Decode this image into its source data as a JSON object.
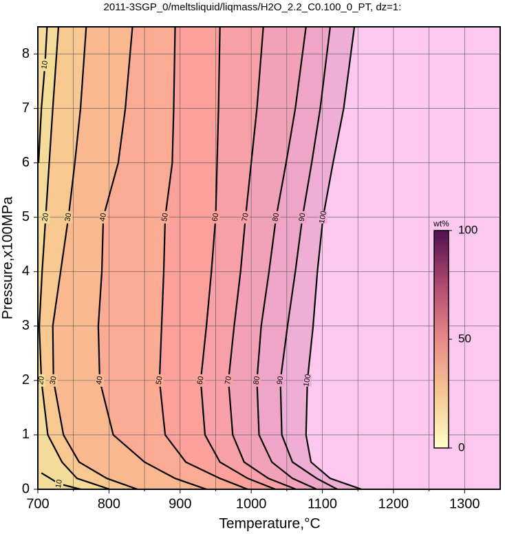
{
  "chart_data": {
    "type": "contour",
    "title": "2011-3SGP_0/meltsliquid/liqmass/H2O_2.2_C0.100_0_PT, dz=1:",
    "x_label": "Temperature,°C",
    "y_label": "Pressure,x100MPa",
    "xlim": [
      700,
      1350
    ],
    "ylim": [
      0,
      8.5
    ],
    "xticks": [
      700,
      800,
      900,
      1000,
      1100,
      1200,
      1300
    ],
    "minor_xticks": [
      750,
      850,
      950,
      1050,
      1150,
      1250
    ],
    "yticks": [
      0,
      1,
      2,
      3,
      4,
      5,
      6,
      7,
      8
    ],
    "grid": true,
    "low_color": "#f3dc98",
    "high_color": "#fcc8f0",
    "contours": [
      {
        "level": 10,
        "x": [
          760,
          730,
          705,
          null,
          701,
          705,
          710,
          713
        ],
        "y": [
          0,
          0.1,
          0.3,
          null,
          6.0,
          7.0,
          7.8,
          8.5
        ]
      },
      {
        "level": 20,
        "fill": "#f3dc98",
        "x": [
          801,
          755,
          734,
          714,
          705,
          702,
          706,
          711,
          716,
          721,
          729
        ],
        "y": [
          0,
          0.2,
          0.5,
          1,
          2,
          3,
          4,
          5,
          6,
          7,
          8.5
        ]
      },
      {
        "level": 30,
        "fill": "#f7c890",
        "x": [
          840,
          797,
          758,
          736,
          722,
          721,
          732,
          743,
          752,
          760,
          768
        ],
        "y": [
          0,
          0.2,
          0.5,
          1,
          2,
          3,
          4,
          5,
          6,
          7,
          8.5
        ]
      },
      {
        "level": 40,
        "fill": "#f9b890",
        "x": [
          937,
          893,
          850,
          806,
          787,
          785,
          790,
          792,
          813,
          823,
          833
        ],
        "y": [
          0,
          0.2,
          0.5,
          1,
          2,
          3,
          4,
          5,
          6,
          7,
          8.5
        ]
      },
      {
        "level": 50,
        "fill": "#fbaa94",
        "x": [
          995,
          956,
          908,
          879,
          871,
          874,
          877,
          879,
          889,
          891,
          893
        ],
        "y": [
          0,
          0.2,
          0.5,
          1,
          2,
          3,
          4,
          5,
          6,
          7,
          8.5
        ]
      },
      {
        "level": 60,
        "fill": "#fba09a",
        "x": [
          1034,
          995,
          956,
          935,
          929,
          937,
          944,
          950,
          952,
          954,
          956
        ],
        "y": [
          0,
          0.2,
          0.5,
          1,
          2,
          3,
          4,
          5,
          6,
          7,
          8.5
        ]
      },
      {
        "level": 70,
        "fill": "#f7a0a8",
        "x": [
          1063,
          1024,
          990,
          974,
          968,
          976,
          985,
          992,
          1000,
          1008,
          1017
        ],
        "y": [
          0,
          0.2,
          0.5,
          1,
          2,
          3,
          4,
          5,
          6,
          7,
          8.5
        ]
      },
      {
        "level": 80,
        "fill": "#f2a2b8",
        "x": [
          1092,
          1058,
          1029,
          1011,
          1008,
          1014,
          1025,
          1035,
          1049,
          1062,
          1077
        ],
        "y": [
          0,
          0.2,
          0.5,
          1,
          2,
          3,
          4,
          5,
          6,
          7,
          8.5
        ]
      },
      {
        "level": 90,
        "fill": "#eea5c8",
        "x": [
          1121,
          1092,
          1058,
          1043,
          1041,
          1051,
          1062,
          1072,
          1085,
          1097,
          1111
        ],
        "y": [
          0,
          0.2,
          0.5,
          1,
          2,
          3,
          4,
          5,
          6,
          7,
          8.5
        ]
      },
      {
        "level": 100,
        "fill": "#eeaed6",
        "x": [
          1155,
          1111,
          1084,
          1077,
          1079,
          1087,
          1093,
          1101,
          1115,
          1130,
          1145
        ],
        "y": [
          0,
          0.2,
          0.5,
          1,
          2,
          3,
          4,
          5,
          6,
          7,
          8.5
        ]
      }
    ],
    "colorbar": {
      "label": "wt%",
      "lim": [
        0,
        100
      ],
      "ticks": [
        0,
        50,
        100
      ],
      "colors": [
        "#ffffc8",
        "#f6c890",
        "#e88a8a",
        "#b04a70",
        "#501050"
      ]
    }
  }
}
